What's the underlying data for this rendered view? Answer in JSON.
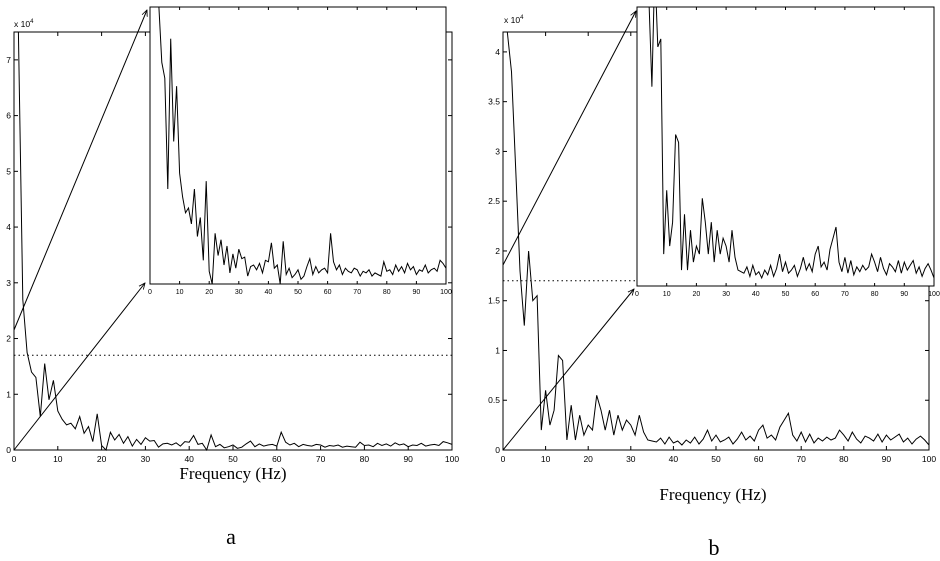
{
  "chart_data": [
    {
      "type": "line",
      "panel_label": "a",
      "xlabel": "Frequency (Hz)",
      "y_exponent_label": "x 10^4",
      "xlim": [
        0,
        100
      ],
      "ylim": [
        0,
        75000
      ],
      "xticks": [
        0,
        10,
        20,
        30,
        40,
        50,
        60,
        70,
        80,
        90,
        100
      ],
      "yticks": [
        0,
        10000,
        20000,
        30000,
        40000,
        50000,
        60000,
        70000
      ],
      "ytick_labels": [
        "0",
        "1",
        "2",
        "3",
        "4",
        "5",
        "6",
        "7"
      ],
      "threshold": 17000,
      "grid": false,
      "series": [
        {
          "x": [
            1,
            2,
            3,
            4,
            5,
            6,
            7,
            8,
            9,
            10,
            11,
            12,
            13,
            14,
            15,
            16,
            17,
            18,
            19,
            20,
            21,
            22,
            23,
            24,
            25,
            26,
            27,
            28,
            29,
            30,
            31,
            32,
            33,
            34,
            35,
            36,
            37,
            38,
            39,
            40,
            41,
            42,
            43,
            44,
            45,
            46,
            47,
            48,
            49,
            50,
            51,
            52,
            53,
            54,
            55,
            56,
            57,
            58,
            59,
            60,
            61,
            62,
            63,
            64,
            65,
            66,
            67,
            68,
            69,
            70,
            71,
            72,
            73,
            74,
            75,
            76,
            77,
            78,
            79,
            80,
            81,
            82,
            83,
            84,
            85,
            86,
            87,
            88,
            89,
            90,
            91,
            92,
            93,
            94,
            95,
            96,
            97,
            98,
            99,
            100
          ],
          "y": [
            75000,
            27000,
            17500,
            14000,
            13000,
            6000,
            15500,
            9000,
            12500,
            7000,
            5500,
            4500,
            4800,
            3800,
            6000,
            3000,
            4200,
            1500,
            6500,
            800,
            0,
            3200,
            1800,
            2800,
            1200,
            2400,
            700,
            1900,
            1000,
            2200,
            1600,
            1700,
            500,
            1100,
            1200,
            900,
            1300,
            700,
            1500,
            1400,
            2600,
            1000,
            1200,
            0,
            2700,
            600,
            1000,
            400,
            600,
            900,
            300,
            500,
            1100,
            1600,
            600,
            1100,
            700,
            900,
            1000,
            700,
            3200,
            1400,
            900,
            1200,
            600,
            1000,
            800,
            700,
            1000,
            900,
            500,
            800,
            700,
            900,
            500,
            700,
            600,
            500,
            1400,
            800,
            900,
            600,
            1200,
            800,
            1100,
            700,
            1300,
            900,
            1100,
            600,
            900,
            800,
            1200,
            700,
            900,
            1000,
            800,
            1500,
            1300,
            1000
          ]
        }
      ]
    },
    {
      "type": "line",
      "panel_label": "b",
      "xlabel": "Frequency (Hz)",
      "y_exponent_label": "x 10^4",
      "xlim": [
        0,
        100
      ],
      "ylim": [
        0,
        42000
      ],
      "xticks": [
        0,
        10,
        20,
        30,
        40,
        50,
        60,
        70,
        80,
        90,
        100
      ],
      "yticks": [
        0,
        5000,
        10000,
        15000,
        20000,
        25000,
        30000,
        35000,
        40000
      ],
      "ytick_labels": [
        "0",
        "0.5",
        "1",
        "1.5",
        "2",
        "2.5",
        "3",
        "3.5",
        "4"
      ],
      "threshold": 17000,
      "grid": false,
      "series": [
        {
          "x": [
            1,
            2,
            3,
            4,
            5,
            6,
            7,
            8,
            9,
            10,
            11,
            12,
            13,
            14,
            15,
            16,
            17,
            18,
            19,
            20,
            21,
            22,
            23,
            24,
            25,
            26,
            27,
            28,
            29,
            30,
            31,
            32,
            33,
            34,
            35,
            36,
            37,
            38,
            39,
            40,
            41,
            42,
            43,
            44,
            45,
            46,
            47,
            48,
            49,
            50,
            51,
            52,
            53,
            54,
            55,
            56,
            57,
            58,
            59,
            60,
            61,
            62,
            63,
            64,
            65,
            66,
            67,
            68,
            69,
            70,
            71,
            72,
            73,
            74,
            75,
            76,
            77,
            78,
            79,
            80,
            81,
            82,
            83,
            84,
            85,
            86,
            87,
            88,
            89,
            90,
            91,
            92,
            93,
            94,
            95,
            96,
            97,
            98,
            99,
            100
          ],
          "y": [
            42000,
            38000,
            28000,
            18000,
            12500,
            20000,
            15000,
            15500,
            2000,
            6000,
            2500,
            4000,
            9500,
            9000,
            1000,
            4500,
            1000,
            3500,
            1500,
            2500,
            2000,
            5500,
            4000,
            2000,
            4000,
            1500,
            3500,
            2000,
            3000,
            2500,
            1500,
            3500,
            1800,
            1000,
            900,
            800,
            1200,
            600,
            1300,
            700,
            900,
            500,
            1000,
            700,
            1300,
            600,
            1100,
            2000,
            900,
            1500,
            800,
            1000,
            1300,
            600,
            1100,
            1800,
            1000,
            1400,
            900,
            2000,
            2500,
            1200,
            1500,
            1000,
            2300,
            3000,
            3700,
            1500,
            900,
            1800,
            800,
            1600,
            700,
            1200,
            900,
            1300,
            1000,
            1200,
            2000,
            1500,
            900,
            1800,
            1100,
            700,
            1400,
            1200,
            900,
            1600,
            800,
            1500,
            1000,
            1300,
            1600,
            800,
            1200,
            600,
            1100,
            1400,
            1000,
            500
          ]
        }
      ]
    }
  ]
}
